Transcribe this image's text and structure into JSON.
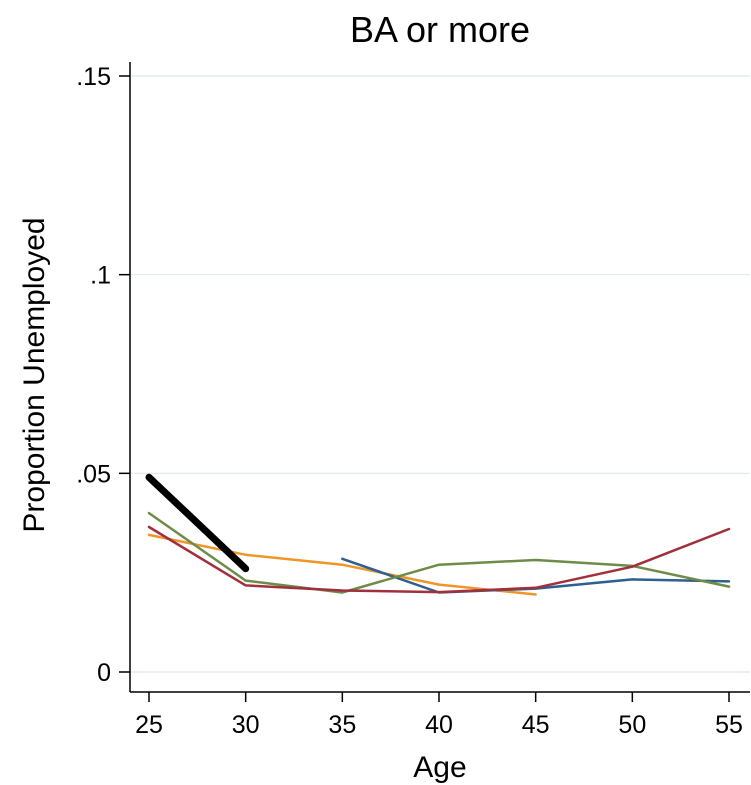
{
  "chart_data": {
    "type": "line",
    "title": "BA or more",
    "xlabel": "Age",
    "ylabel": "Proportion Unemployed",
    "xlim": [
      25,
      55
    ],
    "ylim": [
      0,
      0.15
    ],
    "x_ticks": [
      25,
      30,
      35,
      40,
      45,
      50,
      55
    ],
    "y_ticks": [
      {
        "value": 0,
        "label": "0"
      },
      {
        "value": 0.05,
        "label": ".05"
      },
      {
        "value": 0.1,
        "label": ".1"
      },
      {
        "value": 0.15,
        "label": ".15"
      }
    ],
    "grid": "horizontal",
    "legend": "none",
    "series": [
      {
        "color": "#000000",
        "width": 7,
        "x": [
          25,
          30
        ],
        "y": [
          0.049,
          0.026
        ]
      },
      {
        "color": "#f0952a",
        "width": 2.5,
        "x": [
          25,
          30,
          35,
          40,
          45
        ],
        "y": [
          0.0345,
          0.0295,
          0.027,
          0.022,
          0.0195
        ]
      },
      {
        "color": "#2d5f8f",
        "width": 2.5,
        "x": [
          35,
          40,
          45,
          50,
          55
        ],
        "y": [
          0.0285,
          0.02,
          0.021,
          0.0233,
          0.0228
        ]
      },
      {
        "color": "#6d8c47",
        "width": 2.5,
        "x": [
          25,
          30,
          35,
          40,
          45,
          50,
          55
        ],
        "y": [
          0.04,
          0.023,
          0.02,
          0.027,
          0.0282,
          0.0267,
          0.0215
        ]
      },
      {
        "color": "#a0303c",
        "width": 2.5,
        "x": [
          25,
          30,
          35,
          40,
          45,
          50,
          55
        ],
        "y": [
          0.0365,
          0.0218,
          0.0205,
          0.0201,
          0.0212,
          0.0265,
          0.036
        ]
      }
    ]
  }
}
